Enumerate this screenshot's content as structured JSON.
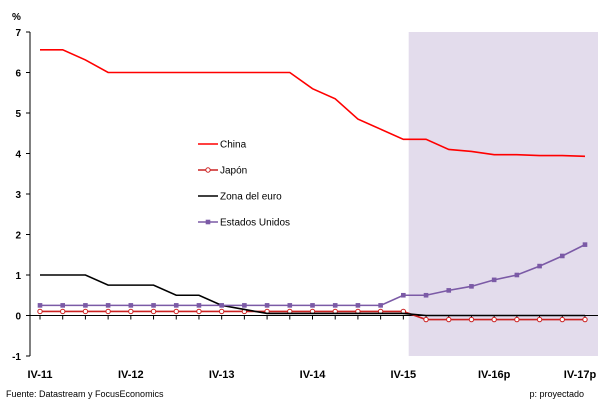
{
  "chart_data": {
    "type": "line",
    "ylabel": "%",
    "ylim": [
      -1,
      7
    ],
    "y_ticks": [
      "-1",
      "0",
      "1",
      "2",
      "3",
      "4",
      "5",
      "6",
      "7"
    ],
    "x_tick_labels": [
      "IV-11",
      "IV-12",
      "IV-13",
      "IV-14",
      "IV-15",
      "IV-16p",
      "IV-17p"
    ],
    "x": [
      "IV-11",
      "I-12",
      "II-12",
      "III-12",
      "IV-12",
      "I-13",
      "II-13",
      "III-13",
      "IV-13",
      "I-14",
      "II-14",
      "III-14",
      "IV-14",
      "I-15",
      "II-15",
      "III-15",
      "IV-15",
      "I-16",
      "II-16",
      "III-16",
      "IV-16",
      "I-17",
      "II-17",
      "III-17",
      "IV-17"
    ],
    "x_full": [
      "IV-11",
      "",
      "",
      "",
      "IV-12",
      "",
      "",
      "",
      "IV-13",
      "",
      "",
      "",
      "IV-14",
      "",
      "",
      "",
      "IV-15",
      "",
      "",
      "",
      "IV-16p",
      "",
      "",
      "",
      "IV-17p"
    ],
    "projection_start": "I-16",
    "shade_color": "#e3dcec",
    "series": [
      {
        "name": "China",
        "color": "#ff0000",
        "marker": "none",
        "values": [
          6.56,
          6.56,
          6.31,
          6.0,
          6.0,
          6.0,
          6.0,
          6.0,
          6.0,
          6.0,
          6.0,
          6.0,
          5.6,
          5.35,
          4.85,
          4.6,
          4.35,
          4.35,
          4.1,
          4.05,
          3.97,
          3.97,
          3.95,
          3.95,
          3.93
        ]
      },
      {
        "name": "Japón",
        "color": "#cc2222",
        "marker": "circle",
        "values": [
          0.1,
          0.1,
          0.1,
          0.1,
          0.1,
          0.1,
          0.1,
          0.1,
          0.1,
          0.1,
          0.1,
          0.1,
          0.1,
          0.1,
          0.1,
          0.1,
          0.1,
          -0.1,
          -0.1,
          -0.1,
          -0.1,
          -0.1,
          -0.1,
          -0.1,
          -0.1
        ]
      },
      {
        "name": "Zona del euro",
        "color": "#000000",
        "marker": "none",
        "values": [
          1.0,
          1.0,
          1.0,
          0.75,
          0.75,
          0.75,
          0.5,
          0.5,
          0.25,
          0.15,
          0.05,
          0.05,
          0.05,
          0.05,
          0.05,
          0.05,
          0.05,
          0.0,
          0.0,
          0.0,
          0.0,
          0.0,
          0.0,
          0.0,
          0.0
        ]
      },
      {
        "name": "Estados Unidos",
        "color": "#7b5aa6",
        "marker": "square",
        "values": [
          0.25,
          0.25,
          0.25,
          0.25,
          0.25,
          0.25,
          0.25,
          0.25,
          0.25,
          0.25,
          0.25,
          0.25,
          0.25,
          0.25,
          0.25,
          0.25,
          0.5,
          0.5,
          0.62,
          0.72,
          0.88,
          1.0,
          1.22,
          1.47,
          1.75
        ]
      }
    ],
    "legend_position": "center"
  },
  "footer": {
    "source": "Fuente: Datastream y FocusEconomics",
    "note": "p: proyectado"
  }
}
